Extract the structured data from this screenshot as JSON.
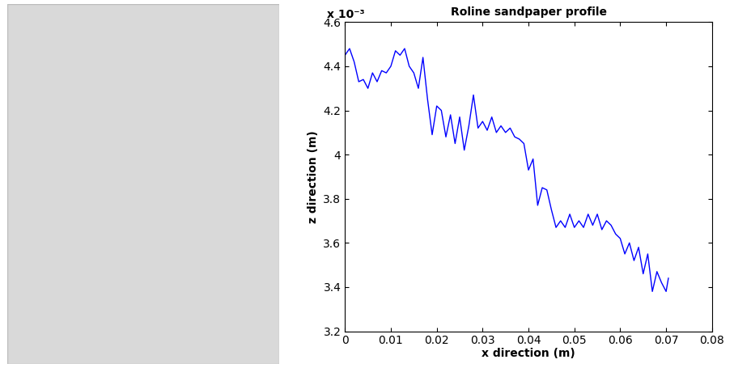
{
  "chart_data": {
    "type": "line",
    "title": "Roline sandpaper profile",
    "x_label": "x direction (m)",
    "y_label": "z direction (m)",
    "annotations": [
      "x 10⁻³"
    ],
    "color": "#0000ff",
    "x": [
      0,
      0.001,
      0.002,
      0.003,
      0.004,
      0.005,
      0.006,
      0.007,
      0.008,
      0.009,
      0.01,
      0.011,
      0.012,
      0.013,
      0.014,
      0.015,
      0.016,
      0.017,
      0.018,
      0.019,
      0.02,
      0.021,
      0.022,
      0.023,
      0.024,
      0.025,
      0.026,
      0.027,
      0.028,
      0.029,
      0.03,
      0.031,
      0.032,
      0.033,
      0.034,
      0.035,
      0.036,
      0.037,
      0.038,
      0.039,
      0.04,
      0.041,
      0.042,
      0.043,
      0.044,
      0.045,
      0.046,
      0.047,
      0.048,
      0.049,
      0.05,
      0.051,
      0.052,
      0.053,
      0.054,
      0.055,
      0.056,
      0.057,
      0.058,
      0.059,
      0.06,
      0.061,
      0.062,
      0.063,
      0.064,
      0.065,
      0.066,
      0.067,
      0.068,
      0.069,
      0.07,
      0.0705
    ],
    "values": [
      0.00445,
      0.00448,
      0.00442,
      0.00433,
      0.00434,
      0.0043,
      0.00437,
      0.00433,
      0.00438,
      0.00437,
      0.0044,
      0.00447,
      0.00445,
      0.00448,
      0.0044,
      0.00437,
      0.0043,
      0.00444,
      0.00425,
      0.00409,
      0.00422,
      0.0042,
      0.00408,
      0.00418,
      0.00405,
      0.00417,
      0.00402,
      0.00413,
      0.00427,
      0.00412,
      0.00415,
      0.00411,
      0.00417,
      0.0041,
      0.00413,
      0.0041,
      0.00412,
      0.00408,
      0.00407,
      0.00405,
      0.00393,
      0.00398,
      0.00377,
      0.00385,
      0.00384,
      0.00375,
      0.00367,
      0.0037,
      0.00367,
      0.00373,
      0.00367,
      0.0037,
      0.00367,
      0.00373,
      0.00368,
      0.00373,
      0.00366,
      0.0037,
      0.00368,
      0.00364,
      0.00362,
      0.00355,
      0.0036,
      0.00352,
      0.00358,
      0.00346,
      0.00355,
      0.00338,
      0.00347,
      0.00342,
      0.00338,
      0.00344
    ],
    "xlim": [
      0,
      0.08
    ],
    "xticks": [
      0,
      0.01,
      0.02,
      0.03,
      0.04,
      0.05,
      0.06,
      0.07,
      0.08
    ],
    "ylim": [
      0.0032,
      0.0046
    ],
    "yticks": [
      {
        "value": 0.0032,
        "label": "3.2"
      },
      {
        "value": 0.0034,
        "label": "3.4"
      },
      {
        "value": 0.0036,
        "label": "3.6"
      },
      {
        "value": 0.0038,
        "label": "3.8"
      },
      {
        "value": 0.004,
        "label": "4"
      },
      {
        "value": 0.0042,
        "label": "4.2"
      },
      {
        "value": 0.0044,
        "label": "4.4"
      },
      {
        "value": 0.0046,
        "label": "4.6"
      }
    ],
    "grid": false
  }
}
